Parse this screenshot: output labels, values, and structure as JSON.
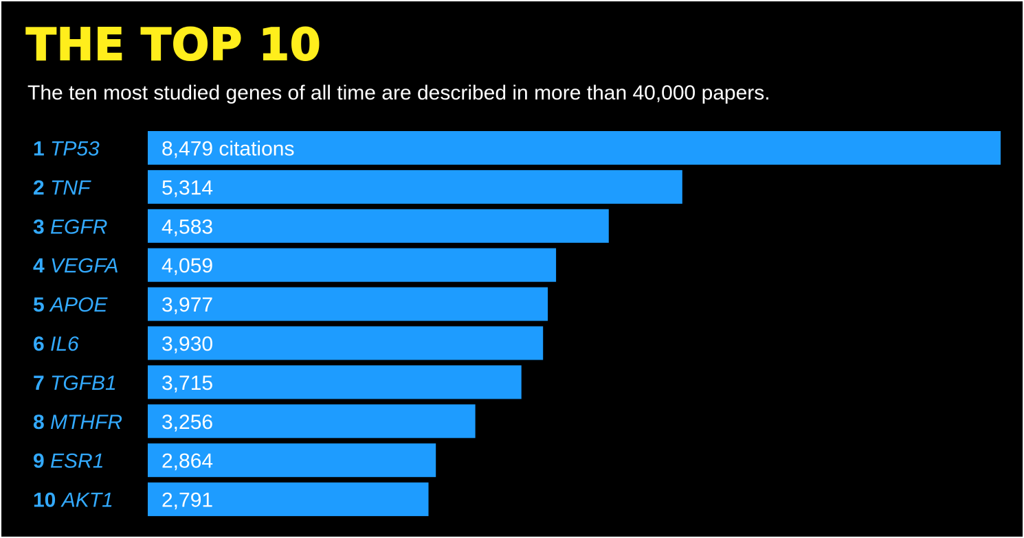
{
  "header": {
    "title": "THE TOP 10",
    "subtitle": "The ten most studied genes of all time are described in more than 40,000 papers."
  },
  "colors": {
    "background": "#000000",
    "title": "#ffee1c",
    "bar": "#1e9cff",
    "label": "#33aaff",
    "bar_text": "#ffffff"
  },
  "chart_data": {
    "type": "bar",
    "orientation": "horizontal",
    "title": "THE TOP 10",
    "subtitle": "The ten most studied genes of all time are described in more than 40,000 papers.",
    "ranks": [
      "1",
      "2",
      "3",
      "4",
      "5",
      "6",
      "7",
      "8",
      "9",
      "10"
    ],
    "categories": [
      "TP53",
      "TNF",
      "EGFR",
      "VEGFA",
      "APOE",
      "IL6",
      "TGFB1",
      "MTHFR",
      "ESR1",
      "AKT1"
    ],
    "values": [
      8479,
      5314,
      4583,
      4059,
      3977,
      3930,
      3715,
      3256,
      2864,
      2791
    ],
    "value_labels": [
      "8,479 citations",
      "5,314",
      "4,583",
      "4,059",
      "3,977",
      "3,930",
      "3,715",
      "3,256",
      "2,864",
      "2,791"
    ],
    "xlim": [
      0,
      8479
    ],
    "grid": false,
    "legend": "none"
  }
}
